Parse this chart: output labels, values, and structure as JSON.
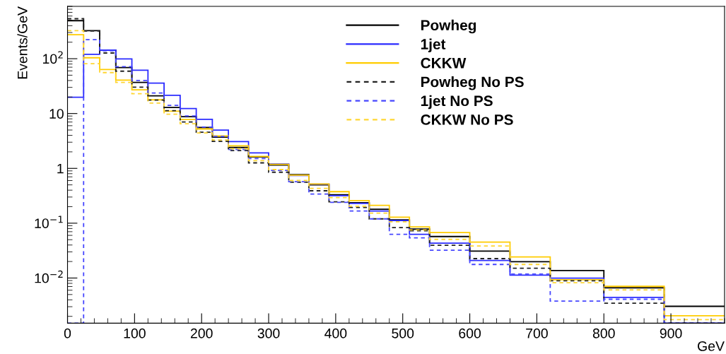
{
  "chart_data": {
    "type": "histogram",
    "xlabel": "GeV",
    "ylabel": "Events/GeV",
    "log": "y",
    "grid": false,
    "legend": "top",
    "bins": [
      0,
      24,
      48,
      72,
      96,
      120,
      144,
      168,
      192,
      216,
      240,
      270,
      300,
      330,
      360,
      390,
      420,
      450,
      480,
      510,
      540,
      600,
      660,
      720,
      800,
      890,
      980
    ],
    "xlim": [
      0,
      980
    ],
    "xticks": [
      0,
      100,
      200,
      300,
      400,
      500,
      600,
      700,
      800,
      900
    ],
    "ylim": [
      0.0015,
      900
    ],
    "yticks": [
      {
        "value": 0.01,
        "label": "10$^{−2}$"
      },
      {
        "value": 0.1,
        "label": "10$^{−1}$"
      },
      1,
      10,
      {
        "value": 100,
        "label": "10$^{2}$"
      }
    ],
    "series": [
      {
        "name": "Powheg",
        "color": "#000000",
        "line_style": "solid",
        "values": [
          494,
          325,
          143,
          68.7,
          36.9,
          21,
          12.9,
          8.75,
          5.55,
          3.7,
          2.4,
          1.62,
          1.15,
          0.77,
          0.5,
          0.33,
          0.237,
          0.18,
          0.115,
          0.078,
          0.0571,
          0.031,
          0.0199,
          0.0137,
          0.00665,
          0.00305
        ]
      },
      {
        "name": "1jet",
        "color": "#2b2bff",
        "line_style": "solid",
        "values": [
          19.8,
          120,
          143,
          99,
          61.7,
          35.8,
          21.5,
          12.3,
          7.85,
          4.99,
          3.07,
          1.91,
          1.2,
          0.74,
          0.515,
          0.318,
          0.23,
          0.167,
          0.112,
          0.0625,
          0.0433,
          0.0209,
          0.0113,
          0.00997,
          0.00443,
          null
        ]
      },
      {
        "name": "CKKW",
        "color": "#ffcc00",
        "line_style": "solid",
        "values": [
          273,
          104,
          63.6,
          40.8,
          27,
          17.8,
          11.0,
          7.8,
          5.23,
          3.89,
          2.57,
          1.65,
          1.18,
          0.75,
          0.52,
          0.376,
          0.259,
          0.212,
          0.129,
          0.0855,
          0.0675,
          0.0451,
          0.0242,
          0.0093,
          0.00705,
          0.00205
        ]
      },
      {
        "name": "Powheg No PS",
        "color": "#222222",
        "line_style": "dashed",
        "values": [
          536,
          320,
          127,
          59.2,
          30.3,
          17.6,
          11.3,
          7.0,
          4.56,
          3.1,
          2.11,
          1.26,
          0.85,
          0.56,
          0.39,
          0.246,
          0.194,
          0.12,
          0.083,
          0.073,
          0.0396,
          0.0226,
          0.0151,
          0.0089,
          0.00347,
          null
        ]
      },
      {
        "name": "1jet No PS",
        "color": "#4646ff",
        "line_style": "dashed",
        "values": [
          null,
          222,
          140,
          71.6,
          40,
          23.7,
          14.1,
          9.0,
          5.66,
          3.82,
          2.2,
          1.51,
          0.92,
          0.57,
          0.34,
          0.24,
          0.167,
          0.12,
          0.0625,
          0.0539,
          0.0322,
          0.0177,
          0.0118,
          0.0038,
          0.0041,
          null
        ]
      },
      {
        "name": "CKKW No PS",
        "color": "#ffd633",
        "line_style": "dashed",
        "values": [
          324,
          81,
          55.8,
          36.9,
          23,
          15.5,
          9.7,
          6.5,
          4.43,
          3.3,
          2.28,
          1.38,
          0.95,
          0.6,
          0.43,
          0.294,
          0.204,
          0.153,
          0.106,
          0.0753,
          0.0507,
          0.0385,
          0.0177,
          0.0082,
          0.00608,
          0.00174
        ]
      }
    ]
  }
}
